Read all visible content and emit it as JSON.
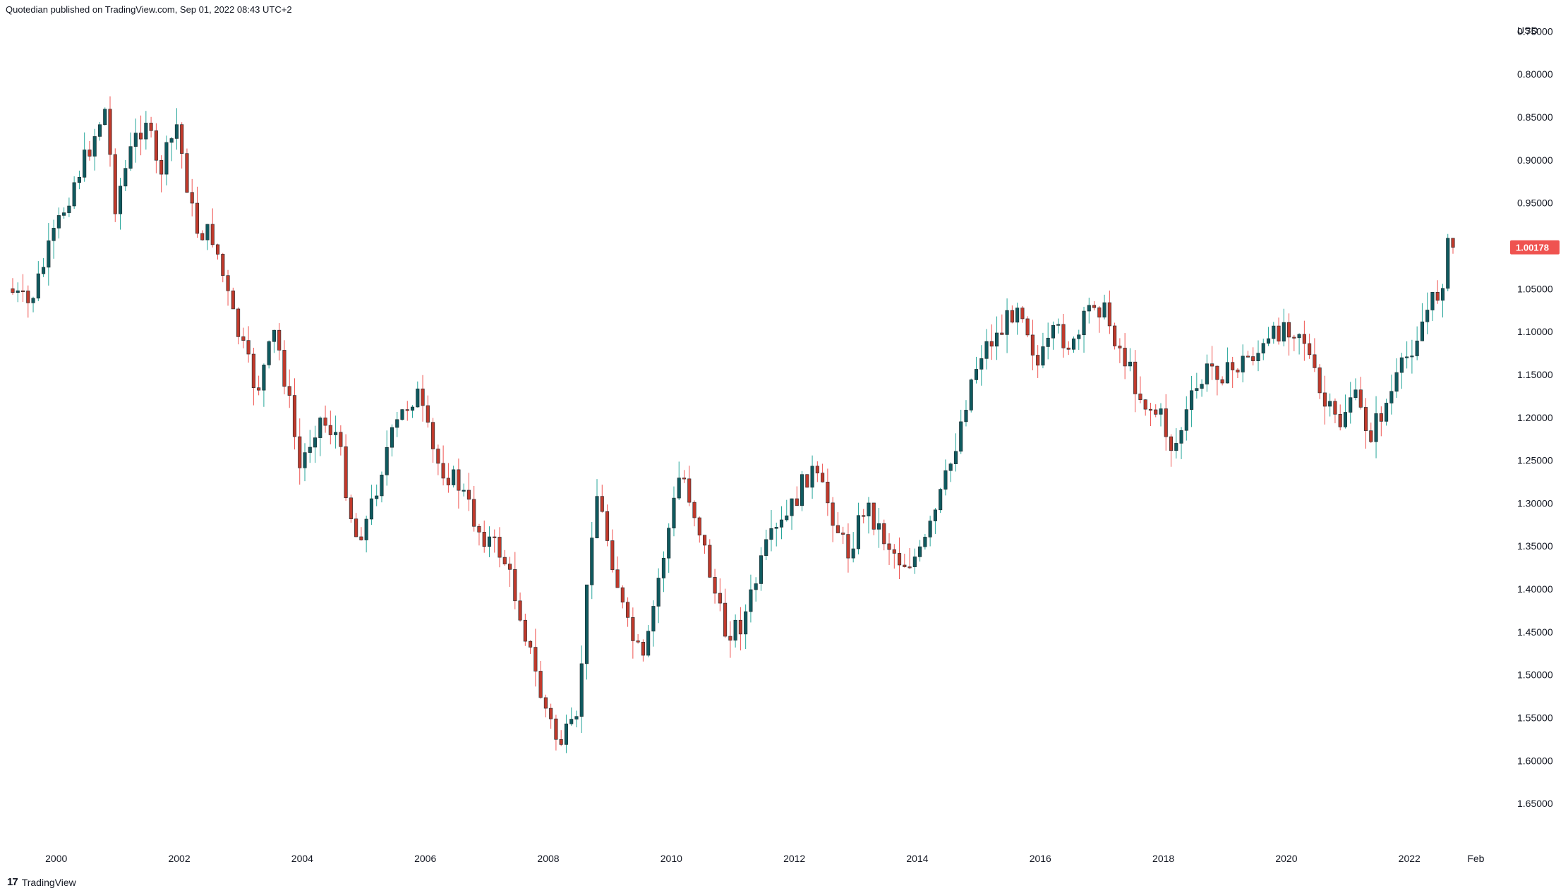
{
  "header": {
    "text": "Quotedian published on TradingView.com, Sep 01, 2022 08:43 UTC+2"
  },
  "footer": {
    "logo": "17",
    "brand": "TradingView"
  },
  "colors": {
    "up": "#26a69a",
    "down": "#ef5350",
    "up_body": "#0f5a5f",
    "down_body": "#c0392b",
    "price_tag": "#ef5350"
  },
  "chart_data": {
    "type": "candlestick",
    "scale": "inverted",
    "currency": "USD",
    "last_price": "1.00178",
    "y_ticks": [
      "0.75000",
      "0.80000",
      "0.85000",
      "0.90000",
      "0.95000",
      "1.00000",
      "1.05000",
      "1.10000",
      "1.15000",
      "1.20000",
      "1.25000",
      "1.30000",
      "1.35000",
      "1.40000",
      "1.45000",
      "1.50000",
      "1.55000",
      "1.60000",
      "1.65000"
    ],
    "x_ticks": [
      {
        "label": "2000",
        "x": 2000.0
      },
      {
        "label": "2002",
        "x": 2002.0
      },
      {
        "label": "2004",
        "x": 2004.0
      },
      {
        "label": "2006",
        "x": 2006.0
      },
      {
        "label": "2008",
        "x": 2008.0
      },
      {
        "label": "2010",
        "x": 2010.0
      },
      {
        "label": "2012",
        "x": 2012.0
      },
      {
        "label": "2014",
        "x": 2014.0
      },
      {
        "label": "2016",
        "x": 2016.0
      },
      {
        "label": "2018",
        "x": 2018.0
      },
      {
        "label": "2020",
        "x": 2020.0
      },
      {
        "label": "2022",
        "x": 2022.0
      },
      {
        "label": "Feb",
        "x": 2023.08
      }
    ],
    "ylim": [
      0.73,
      1.7
    ],
    "xlim": [
      1999.2,
      2023.5
    ],
    "anchors": [
      [
        1999.25,
        1.05
      ],
      [
        1999.6,
        1.07
      ],
      [
        1999.95,
        1.0
      ],
      [
        2000.3,
        0.93
      ],
      [
        2000.5,
        0.9
      ],
      [
        2000.83,
        0.84
      ],
      [
        2001.0,
        0.95
      ],
      [
        2001.3,
        0.88
      ],
      [
        2001.5,
        0.85
      ],
      [
        2001.7,
        0.92
      ],
      [
        2002.0,
        0.86
      ],
      [
        2002.3,
        0.98
      ],
      [
        2002.6,
        0.99
      ],
      [
        2002.9,
        1.08
      ],
      [
        2003.3,
        1.17
      ],
      [
        2003.6,
        1.1
      ],
      [
        2003.8,
        1.17
      ],
      [
        2004.0,
        1.26
      ],
      [
        2004.3,
        1.2
      ],
      [
        2004.6,
        1.22
      ],
      [
        2004.9,
        1.34
      ],
      [
        2005.1,
        1.32
      ],
      [
        2005.4,
        1.24
      ],
      [
        2005.7,
        1.19
      ],
      [
        2005.9,
        1.17
      ],
      [
        2006.2,
        1.25
      ],
      [
        2006.6,
        1.28
      ],
      [
        2006.9,
        1.33
      ],
      [
        2007.3,
        1.36
      ],
      [
        2007.6,
        1.43
      ],
      [
        2007.9,
        1.52
      ],
      [
        2008.2,
        1.58
      ],
      [
        2008.5,
        1.56
      ],
      [
        2008.8,
        1.28
      ],
      [
        2009.1,
        1.37
      ],
      [
        2009.3,
        1.44
      ],
      [
        2009.6,
        1.49
      ],
      [
        2009.8,
        1.4
      ],
      [
        2010.2,
        1.26
      ],
      [
        2010.5,
        1.33
      ],
      [
        2010.9,
        1.45
      ],
      [
        2011.2,
        1.44
      ],
      [
        2011.6,
        1.35
      ],
      [
        2011.9,
        1.32
      ],
      [
        2012.3,
        1.26
      ],
      [
        2012.6,
        1.3
      ],
      [
        2012.9,
        1.36
      ],
      [
        2013.2,
        1.3
      ],
      [
        2013.5,
        1.34
      ],
      [
        2013.8,
        1.37
      ],
      [
        2014.1,
        1.36
      ],
      [
        2014.3,
        1.32
      ],
      [
        2014.6,
        1.25
      ],
      [
        2014.9,
        1.16
      ],
      [
        2015.1,
        1.12
      ],
      [
        2015.4,
        1.1
      ],
      [
        2015.7,
        1.06
      ],
      [
        2016.0,
        1.14
      ],
      [
        2016.3,
        1.1
      ],
      [
        2016.6,
        1.12
      ],
      [
        2016.9,
        1.06
      ],
      [
        2017.1,
        1.08
      ],
      [
        2017.4,
        1.13
      ],
      [
        2017.7,
        1.18
      ],
      [
        2018.0,
        1.2
      ],
      [
        2018.2,
        1.24
      ],
      [
        2018.5,
        1.18
      ],
      [
        2018.8,
        1.14
      ],
      [
        2019.1,
        1.15
      ],
      [
        2019.4,
        1.13
      ],
      [
        2019.7,
        1.12
      ],
      [
        2020.0,
        1.09
      ],
      [
        2020.3,
        1.1
      ],
      [
        2020.6,
        1.18
      ],
      [
        2020.9,
        1.21
      ],
      [
        2021.1,
        1.17
      ],
      [
        2021.4,
        1.22
      ],
      [
        2021.7,
        1.18
      ],
      [
        2022.0,
        1.13
      ],
      [
        2022.3,
        1.08
      ],
      [
        2022.55,
        1.05
      ],
      [
        2022.67,
        1.00178
      ]
    ]
  }
}
